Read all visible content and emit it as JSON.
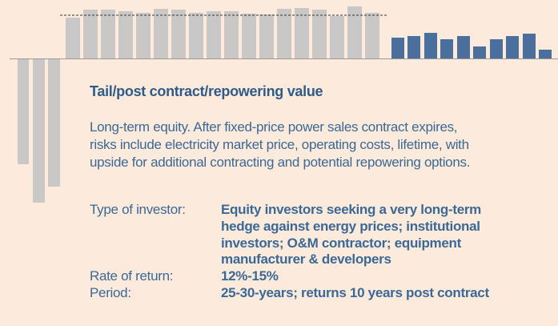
{
  "title": "Tail/post contract/repowering value",
  "description": [
    "Long-term equity. After fixed-price power sales contract expires,",
    "risks include electricity market price, operating costs, lifetime, with",
    "upside for additional contracting and potential repowering options."
  ],
  "details": [
    {
      "label": "Type of investor:",
      "value": [
        "Equity investors seeking a very long-term",
        "hedge against energy prices; institutional",
        "investors; O&M contractor; equipment",
        "manufacturer & developers"
      ]
    },
    {
      "label": "Rate of return:",
      "value": [
        "12%-15%"
      ]
    },
    {
      "label": "Period:",
      "value": [
        "25-30-years; returns 10 years post contract"
      ]
    }
  ]
}
